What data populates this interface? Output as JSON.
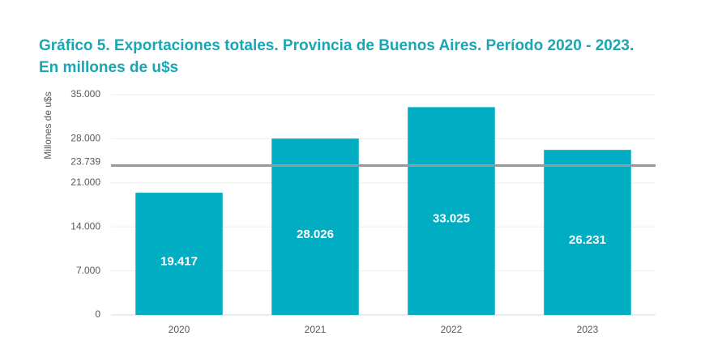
{
  "chart_data": {
    "type": "bar",
    "title": "Gráfico 5. Exportaciones totales. Provincia de Buenos Aires. Período 2020 - 2023.",
    "subtitle": "En millones de u$s",
    "y_label": "Millones de u$s",
    "categories": [
      "2020",
      "2021",
      "2022",
      "2023"
    ],
    "values": [
      19417,
      28026,
      33025,
      26231
    ],
    "value_labels": [
      "19.417",
      "28.026",
      "33.025",
      "26.231"
    ],
    "color": "#00adc3",
    "ylim": [
      0,
      35000
    ],
    "yticks": [
      0,
      {
        "value": 7000,
        "label": "7.000"
      },
      {
        "value": 14000,
        "label": "14.000"
      },
      {
        "value": 21000,
        "label": "21.000"
      },
      {
        "value": 28000,
        "label": "28.000"
      },
      {
        "value": 35000,
        "label": "35.000"
      }
    ],
    "reference_line": {
      "value": 23739,
      "label": "23.739",
      "color": "#999999"
    },
    "grid": true
  }
}
